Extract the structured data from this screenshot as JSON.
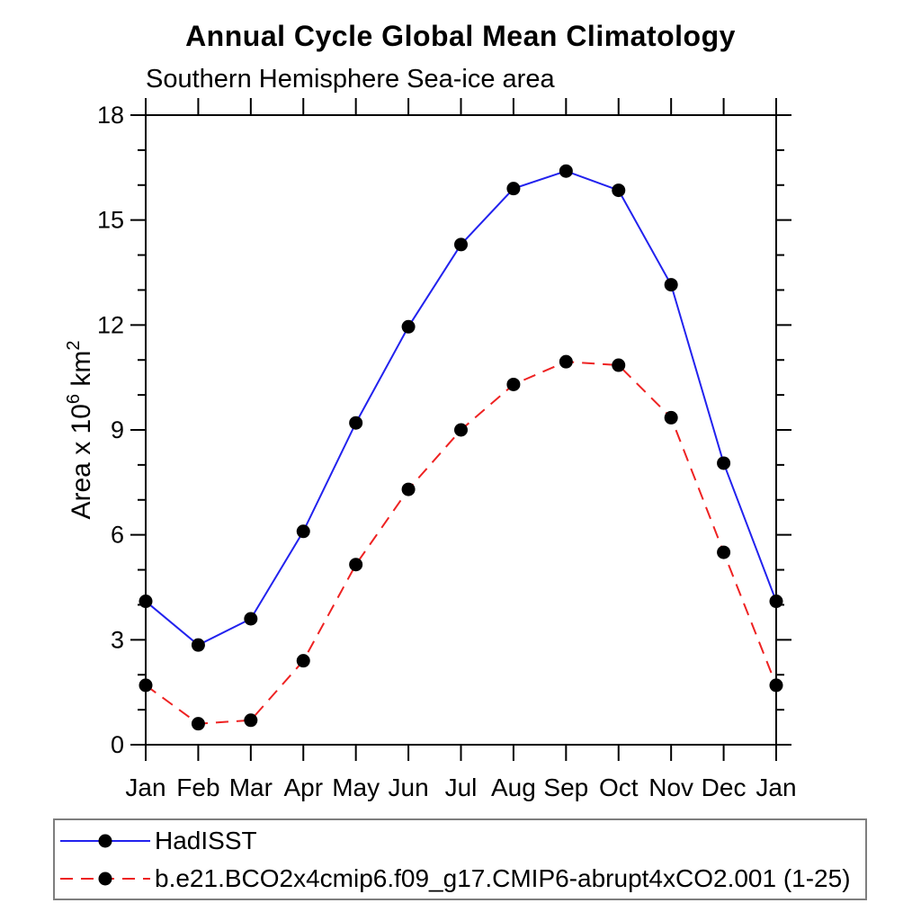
{
  "page": {
    "title": "Annual Cycle Global Mean Climatology",
    "subtitle": "Southern Hemisphere Sea-ice area"
  },
  "chart_data": {
    "type": "line",
    "title": "Annual Cycle Global Mean Climatology",
    "subtitle": "Southern Hemisphere Sea-ice area",
    "categories": [
      "Jan",
      "Feb",
      "Mar",
      "Apr",
      "May",
      "Jun",
      "Jul",
      "Aug",
      "Sep",
      "Oct",
      "Nov",
      "Dec",
      "Jan"
    ],
    "ylabel": "Area x 10⁶ km²",
    "ylabel_parts": [
      {
        "text": "Area x 10",
        "sup": false
      },
      {
        "text": "6",
        "sup": true
      },
      {
        "text": " km",
        "sup": false
      },
      {
        "text": "2",
        "sup": true
      }
    ],
    "ylim": [
      0,
      18
    ],
    "yticks_labeled": [
      0,
      3,
      6,
      9,
      12,
      15,
      18
    ],
    "ytick_minor_interval": 1,
    "grid": false,
    "legend_position": "bottom-left",
    "axis_color": "#000000",
    "marker_color": "#000000",
    "series": [
      {
        "name": "HadISST",
        "color": "#2222ee",
        "line_style": "solid",
        "marker": "circle",
        "values": [
          4.1,
          2.85,
          3.6,
          6.1,
          9.2,
          11.95,
          14.3,
          15.9,
          16.4,
          15.85,
          13.15,
          8.05,
          4.1
        ]
      },
      {
        "name": "b.e21.BCO2x4cmip6.f09_g17.CMIP6-abrupt4xCO2.001 (1-25)",
        "color": "#ee2222",
        "line_style": "dashed",
        "marker": "circle",
        "values": [
          1.7,
          0.6,
          0.7,
          2.4,
          5.15,
          7.3,
          9.0,
          10.3,
          10.95,
          10.85,
          9.35,
          5.5,
          1.7
        ]
      }
    ]
  }
}
